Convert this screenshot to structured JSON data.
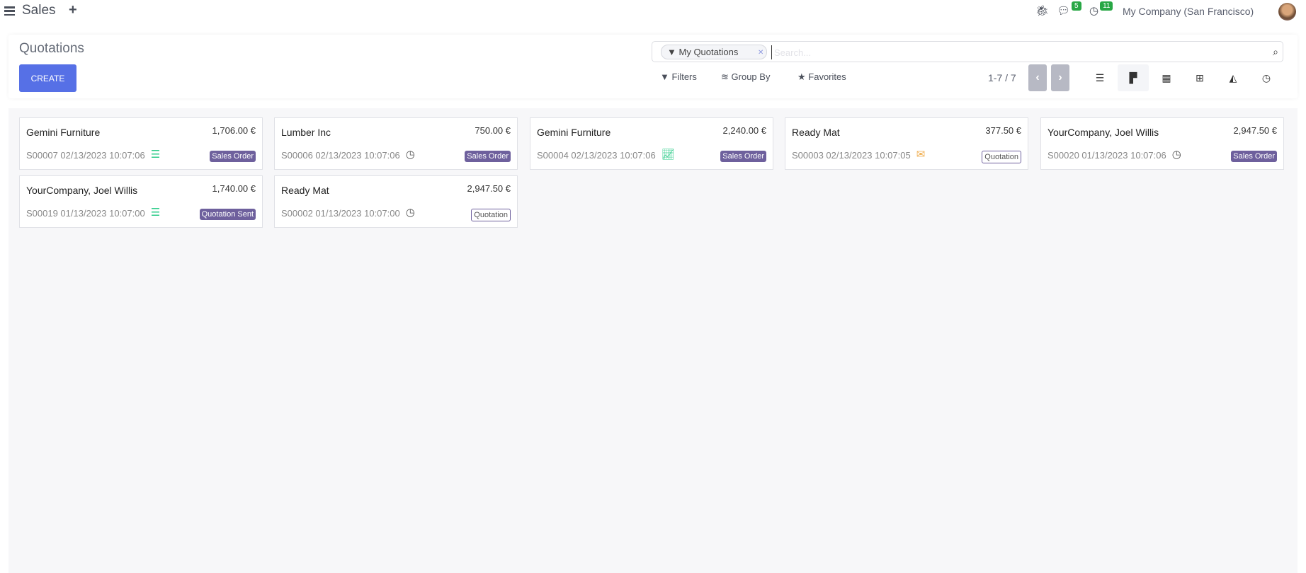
{
  "topbar": {
    "app_name": "Sales",
    "messages_count": "5",
    "activities_count": "11",
    "company": "My Company (San Francisco)"
  },
  "control_panel": {
    "title": "Quotations",
    "create_label": "CREATE",
    "search": {
      "facet": "My Quotations",
      "placeholder": "Search..."
    },
    "filters_label": "Filters",
    "groupby_label": "Group By",
    "favorites_label": "Favorites",
    "pager": "1-7 / 7",
    "views": [
      "list",
      "kanban",
      "calendar",
      "pivot",
      "graph",
      "activity"
    ],
    "active_view": "kanban"
  },
  "colors": {
    "primary": "#5670e6",
    "tag": "#6e609d",
    "success": "#28a745",
    "warning": "#f0ad4e",
    "activity_green": "#2ecc8a"
  },
  "cards": [
    {
      "customer": "Gemini Furniture",
      "amount": "1,706.00 €",
      "ref": "S00007 02/13/2023 10:07:06",
      "activity_icon": "tasks-icon",
      "status": "Sales Order"
    },
    {
      "customer": "Lumber Inc",
      "amount": "750.00 €",
      "ref": "S00006 02/13/2023 10:07:06",
      "activity_icon": "clock-icon",
      "status": "Sales Order"
    },
    {
      "customer": "Gemini Furniture",
      "amount": "2,240.00 €",
      "ref": "S00004 02/13/2023 10:07:06",
      "activity_icon": "line-chart-icon",
      "status": "Sales Order"
    },
    {
      "customer": "Ready Mat",
      "amount": "377.50 €",
      "ref": "S00003 02/13/2023 10:07:05",
      "activity_icon": "envelope-icon",
      "status": "Quotation"
    },
    {
      "customer": "YourCompany, Joel Willis",
      "amount": "2,947.50 €",
      "ref": "S00020 01/13/2023 10:07:06",
      "activity_icon": "clock-icon",
      "status": "Sales Order"
    },
    {
      "customer": "YourCompany, Joel Willis",
      "amount": "1,740.00 €",
      "ref": "S00019 01/13/2023 10:07:00",
      "activity_icon": "tasks-icon",
      "status": "Quotation Sent"
    },
    {
      "customer": "Ready Mat",
      "amount": "2,947.50 €",
      "ref": "S00002 01/13/2023 10:07:00",
      "activity_icon": "clock-icon",
      "status": "Quotation"
    }
  ]
}
